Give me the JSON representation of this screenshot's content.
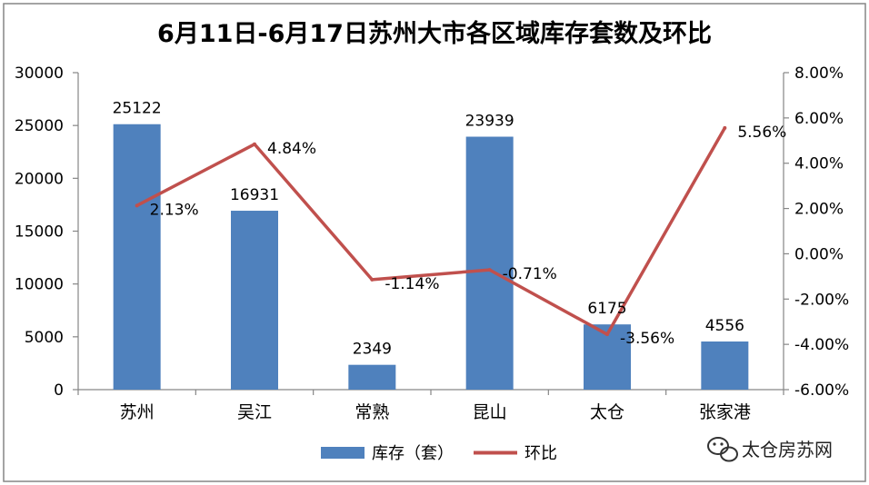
{
  "chart_data": {
    "type": "bar",
    "title": "6月11日-6月17日苏州大市各区域库存套数及环比",
    "categories": [
      "苏州",
      "吴江",
      "常熟",
      "昆山",
      "太仓",
      "张家港"
    ],
    "series": [
      {
        "name": "库存（套）",
        "kind": "bar",
        "axis": "left",
        "color": "#4F81BD",
        "values": [
          25122,
          16931,
          2349,
          23939,
          6175,
          4556
        ],
        "labels": [
          "25122",
          "16931",
          "2349",
          "23939",
          "6175",
          "4556"
        ]
      },
      {
        "name": "环比",
        "kind": "line",
        "axis": "right",
        "color": "#C0504D",
        "values": [
          2.13,
          4.84,
          -1.14,
          -0.71,
          -3.56,
          5.56
        ],
        "labels": [
          "2.13%",
          "4.84%",
          "-1.14%",
          "-0.71%",
          "-3.56%",
          "5.56%"
        ]
      }
    ],
    "left_axis": {
      "min": 0,
      "max": 30000,
      "ticks": [
        0,
        5000,
        10000,
        15000,
        20000,
        25000,
        30000
      ],
      "tick_labels": [
        "0",
        "5000",
        "10000",
        "15000",
        "20000",
        "25000",
        "30000"
      ]
    },
    "right_axis": {
      "min": -6,
      "max": 8,
      "ticks": [
        -6,
        -4,
        -2,
        0,
        2,
        4,
        6,
        8
      ],
      "tick_labels": [
        "-6.00%",
        "-4.00%",
        "-2.00%",
        "0.00%",
        "2.00%",
        "4.00%",
        "6.00%",
        "8.00%"
      ]
    },
    "grid": false,
    "legend": "bottom"
  },
  "watermark": {
    "text": "太仓房苏网",
    "icon": "wechat-icon"
  },
  "colors": {
    "bar": "#4F81BD",
    "line": "#C0504D",
    "border": "#868686",
    "axis": "#868686"
  }
}
